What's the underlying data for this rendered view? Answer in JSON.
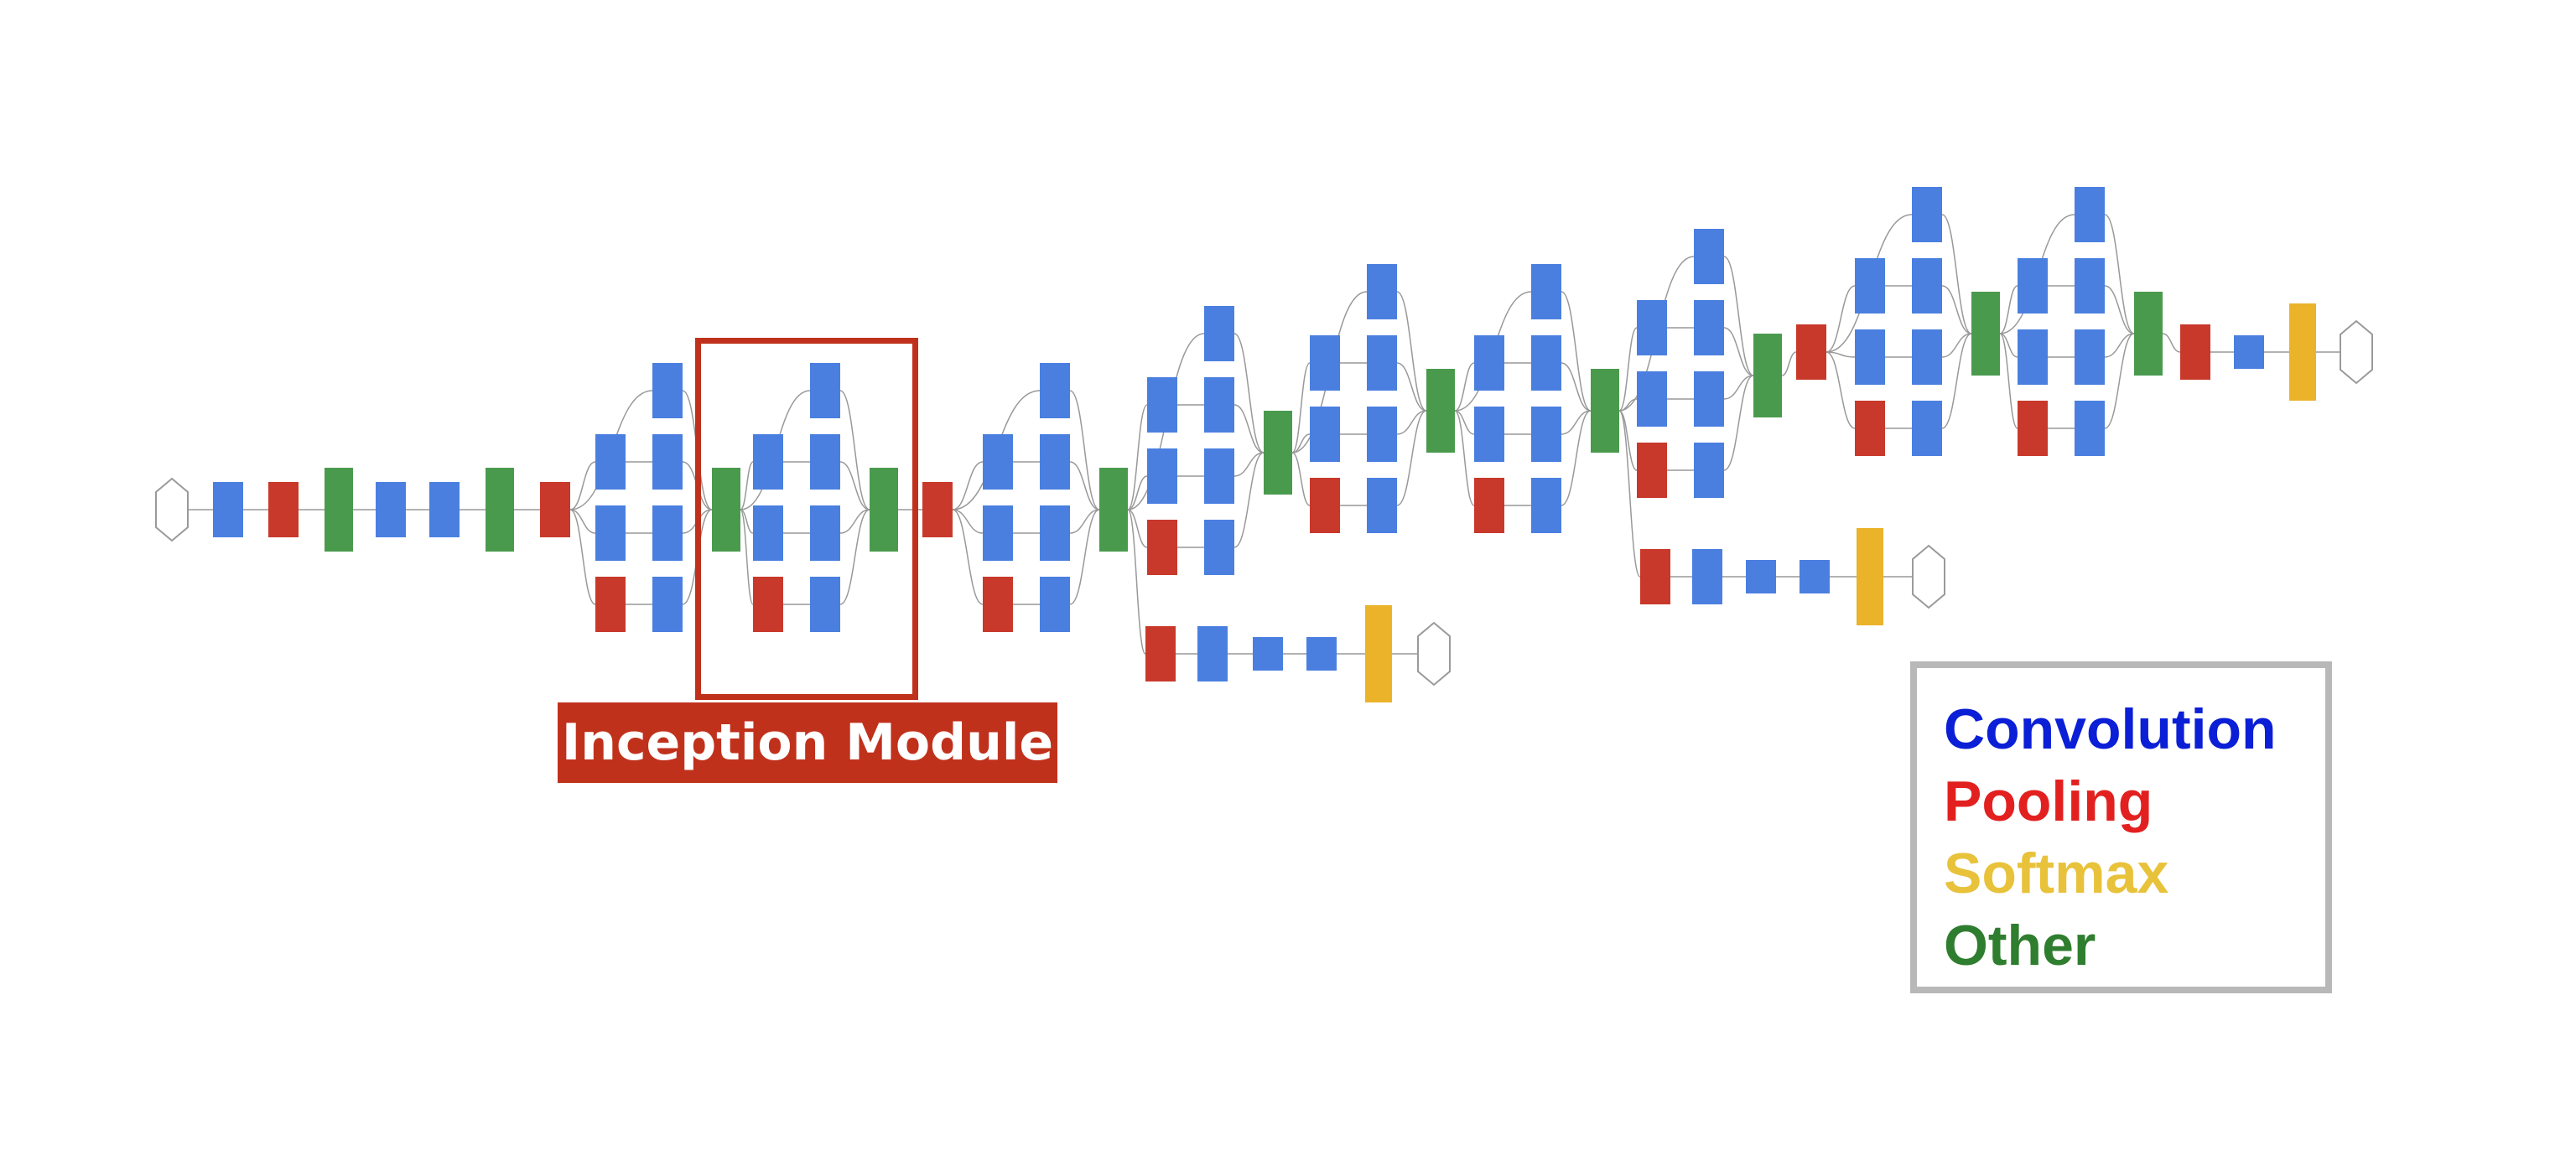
{
  "callout": {
    "label": "Inception Module"
  },
  "legend": {
    "entries": [
      {
        "label": "Convolution",
        "color": "#0b1fd6"
      },
      {
        "label": "Pooling",
        "color": "#e32020"
      },
      {
        "label": "Softmax",
        "color": "#e8c23a"
      },
      {
        "label": "Other",
        "color": "#2f7d2f"
      }
    ]
  },
  "colors": {
    "convolution": "#4a7fe0",
    "pooling": "#c8392b",
    "softmax": "#eab32a",
    "other": "#4a9a4e",
    "edge": "#999999",
    "callout": "#c0311c"
  }
}
